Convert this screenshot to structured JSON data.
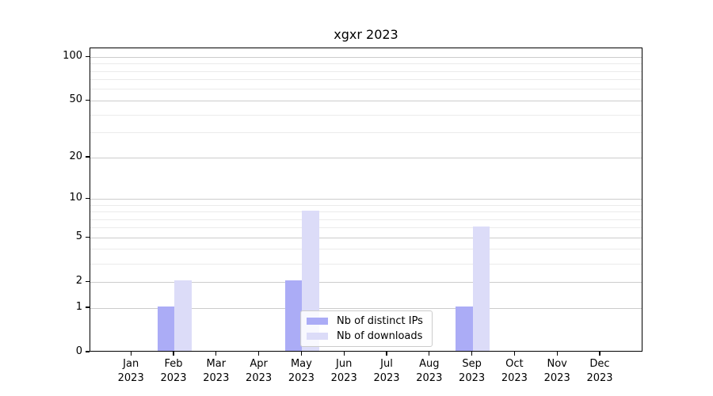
{
  "chart_data": {
    "type": "bar",
    "title": "xgxr 2023",
    "scale": "log1p",
    "categories": [
      "Jan 2023",
      "Feb 2023",
      "Mar 2023",
      "Apr 2023",
      "May 2023",
      "Jun 2023",
      "Jul 2023",
      "Aug 2023",
      "Sep 2023",
      "Oct 2023",
      "Nov 2023",
      "Dec 2023"
    ],
    "series": [
      {
        "name": "Nb of distinct IPs",
        "color": "#abacf6",
        "values": [
          0,
          1,
          0,
          0,
          2,
          0,
          0,
          0,
          1,
          0,
          0,
          0
        ]
      },
      {
        "name": "Nb of downloads",
        "color": "#dcdcf8",
        "values": [
          0,
          2,
          0,
          0,
          8,
          0,
          0,
          0,
          6,
          0,
          0,
          0
        ]
      }
    ],
    "y_axis": {
      "tick_values": [
        0,
        1,
        2,
        5,
        10,
        20,
        50,
        100
      ],
      "tick_labels": [
        "0",
        "1",
        "2",
        "5",
        "10",
        "20",
        "50",
        "100"
      ],
      "minor_gridline_values": [
        3,
        4,
        6,
        7,
        8,
        9,
        30,
        40,
        60,
        70,
        80,
        90
      ],
      "range_max": 115
    },
    "legend_position": "lower center",
    "colors": {
      "major_grid": "#cccccc",
      "minor_grid": "#ebebeb",
      "axis": "#000000",
      "background": "#ffffff"
    },
    "grid": "on"
  }
}
